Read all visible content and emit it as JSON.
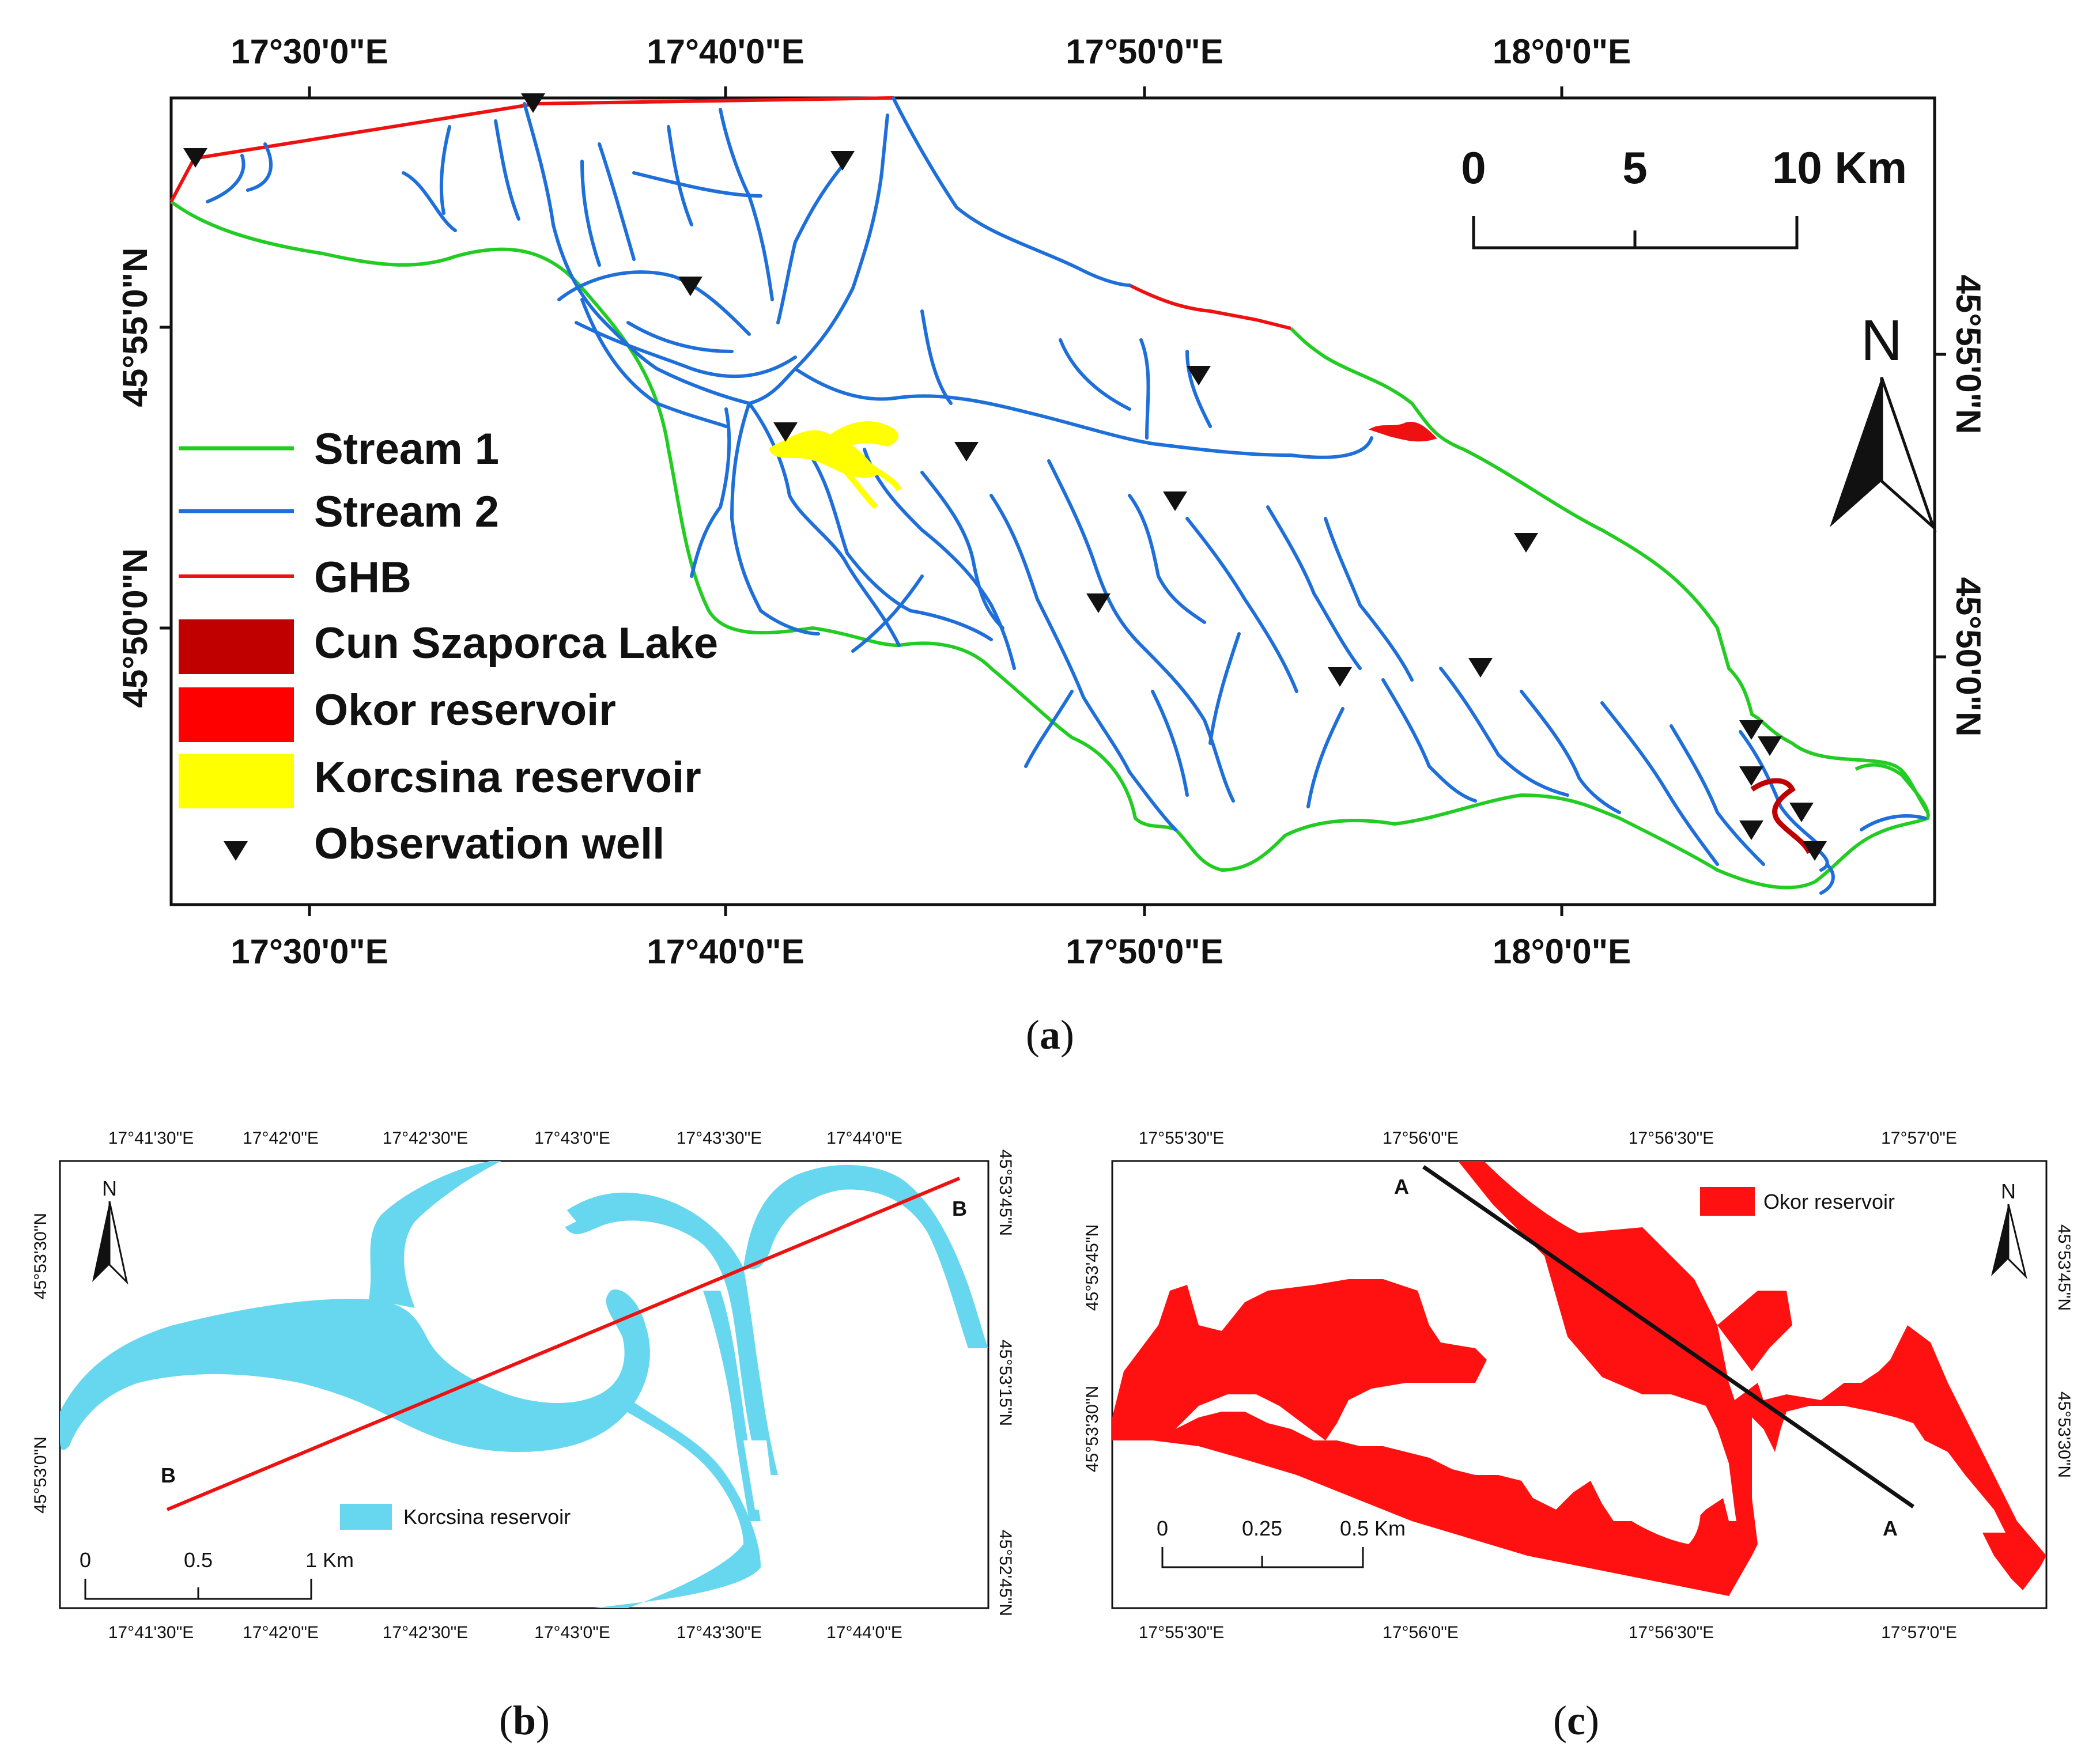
{
  "panel_a": {
    "caption_open": "(",
    "caption_letter": "a",
    "caption_close": ")",
    "top_ticks": [
      "17°30'0\"E",
      "17°40'0\"E",
      "17°50'0\"E",
      "18°0'0\"E"
    ],
    "bottom_ticks": [
      "17°30'0\"E",
      "17°40'0\"E",
      "17°50'0\"E",
      "18°0'0\"E"
    ],
    "left_ticks": [
      "45°55'0\"N",
      "45°50'0\"N"
    ],
    "right_ticks": [
      "45°55'0\"N",
      "45°50'0\"N"
    ],
    "scale_labels": [
      "0",
      "5",
      "10 Km"
    ],
    "north_label": "N",
    "legend": [
      {
        "label": "Stream 1",
        "color": "#22cc22",
        "kind": "line"
      },
      {
        "label": "Stream 2",
        "color": "#1e6fd9",
        "kind": "line"
      },
      {
        "label": "GHB",
        "color": "#ee1111",
        "kind": "line"
      },
      {
        "label": "Cun Szaporca Lake",
        "color": "#c00000",
        "kind": "patch"
      },
      {
        "label": "Okor reservoir",
        "color": "#ff0000",
        "kind": "patch"
      },
      {
        "label": "Korcsina reservoir",
        "color": "#ffff00",
        "kind": "patch"
      },
      {
        "label": "Observation well",
        "color": "#111111",
        "kind": "marker"
      }
    ]
  },
  "panel_b": {
    "caption_open": "(",
    "caption_letter": "b",
    "caption_close": ")",
    "top_ticks": [
      "17°41'30\"E",
      "17°42'0\"E",
      "17°42'30\"E",
      "17°43'0\"E",
      "17°43'30\"E",
      "17°44'0\"E"
    ],
    "bottom_ticks": [
      "17°41'30\"E",
      "17°42'0\"E",
      "17°42'30\"E",
      "17°43'0\"E",
      "17°43'30\"E",
      "17°44'0\"E"
    ],
    "left_ticks": [
      "45°53'30\"N",
      "45°53'0\"N"
    ],
    "right_ticks": [
      "45°53'45\"N",
      "45°53'15\"N",
      "45°52'45\"N"
    ],
    "section_labels": [
      "B",
      "B"
    ],
    "scale_labels": [
      "0",
      "0.5",
      "1 Km"
    ],
    "north_label": "N",
    "legend_label": "Korcsina reservoir",
    "reservoir_color": "#66d7ee",
    "section_color": "#ee1111"
  },
  "panel_c": {
    "caption_open": "(",
    "caption_letter": "c",
    "caption_close": ")",
    "top_ticks": [
      "17°55'30\"E",
      "17°56'0\"E",
      "17°56'30\"E",
      "17°57'0\"E"
    ],
    "bottom_ticks": [
      "17°55'30\"E",
      "17°56'0\"E",
      "17°56'30\"E",
      "17°57'0\"E"
    ],
    "left_ticks": [
      "45°53'45\"N",
      "45°53'30\"N"
    ],
    "right_ticks": [
      "45°53'45\"N",
      "45°53'30\"N"
    ],
    "section_labels": [
      "A",
      "A"
    ],
    "scale_labels": [
      "0",
      "0.25",
      "0.5 Km"
    ],
    "north_label": "N",
    "legend_label": "Okor reservoir",
    "reservoir_color": "#ff1111",
    "section_color": "#111111"
  }
}
